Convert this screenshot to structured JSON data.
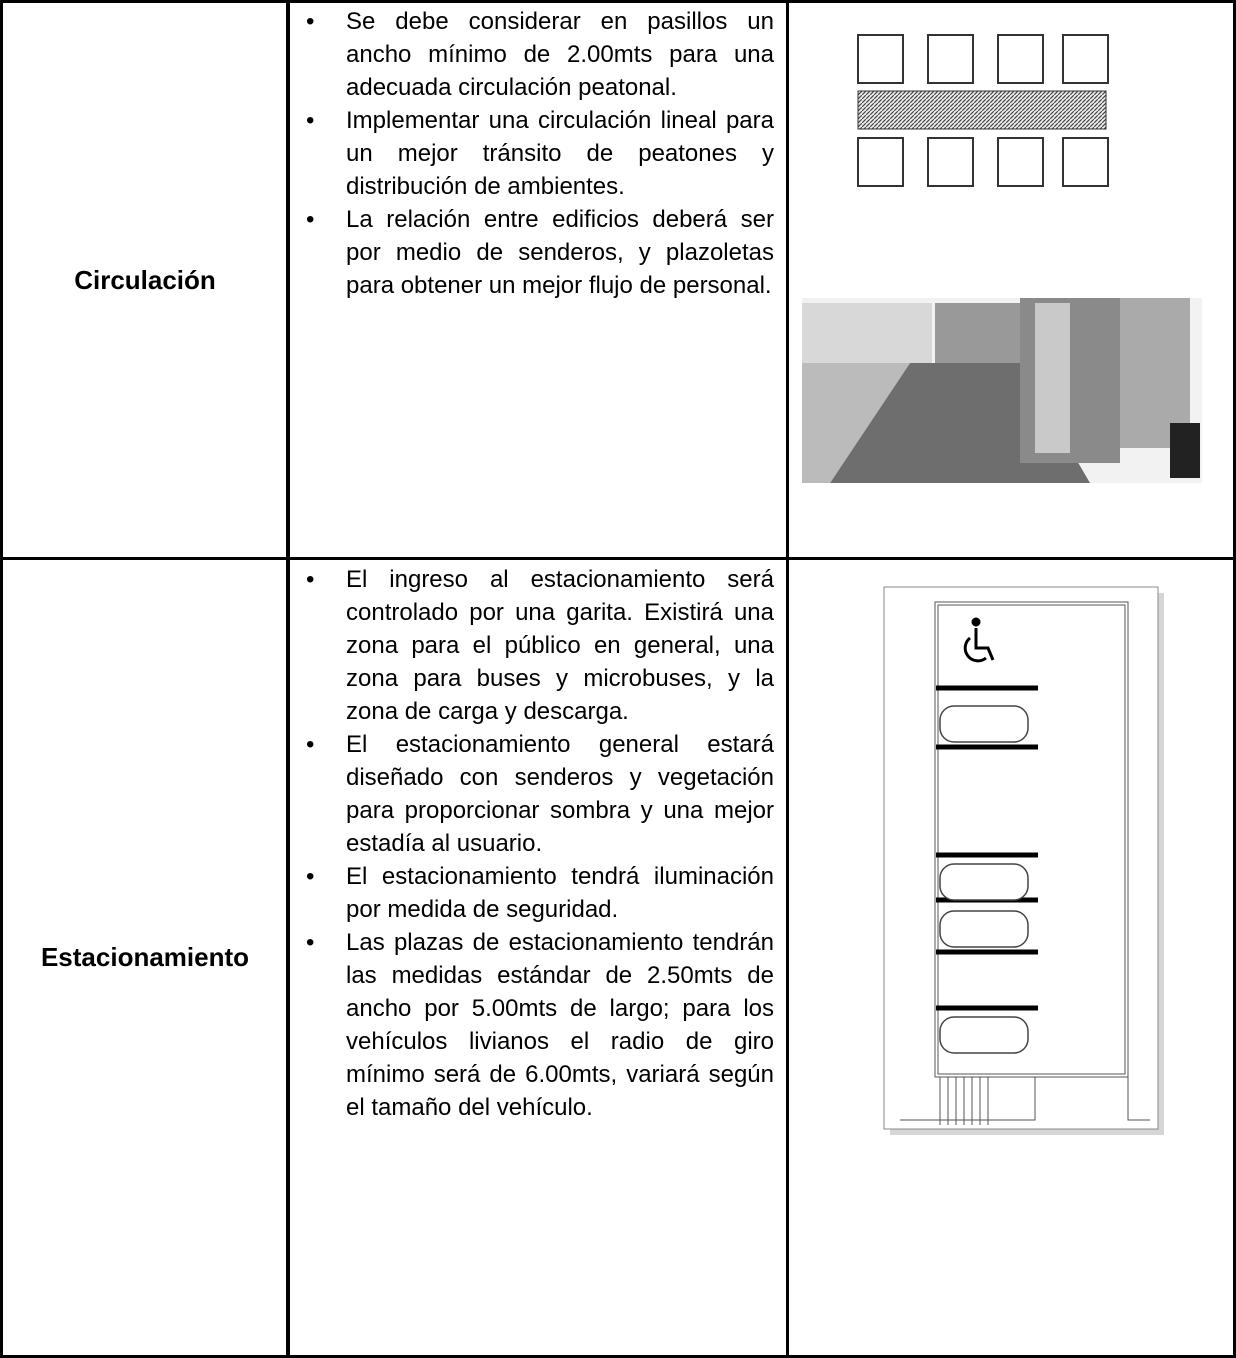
{
  "table": {
    "rows": [
      {
        "label": "Circulación",
        "items": [
          "Se debe considerar en pasillos un ancho mínimo de 2.00mts para una adecuada circulación peatonal.",
          "Implementar una circulación lineal para un mejor tránsito de peatones y distribución de ambientes.",
          "La relación entre edificios deberá ser por medio de senderos, y plazoletas para obtener un mejor flujo de personal."
        ]
      },
      {
        "label": "Estacionamiento",
        "items": [
          "El ingreso al estacionamiento será controlado por una garita. Existirá una zona para el público en general, una zona para buses y microbuses, y la zona de carga y descarga.",
          "El estacionamiento general estará diseñado con senderos y vegetación para proporcionar sombra y una mejor estadía al usuario.",
          "El estacionamiento tendrá iluminación por medida de seguridad.",
          "Las plazas de estacionamiento tendrán las medidas estándar de 2.50mts de ancho por 5.00mts de largo; para los vehículos livianos el radio de giro mínimo será de 6.00mts, variará según el tamaño del vehículo."
        ]
      }
    ]
  }
}
